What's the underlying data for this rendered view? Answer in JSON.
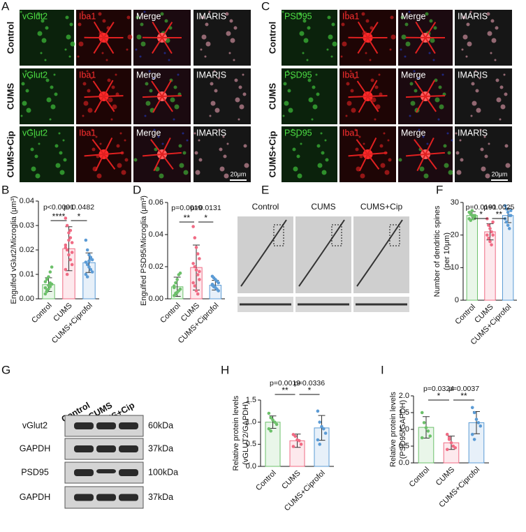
{
  "panel_letters": [
    "A",
    "B",
    "C",
    "D",
    "E",
    "F",
    "G",
    "H",
    "I"
  ],
  "panel_a": {
    "columns": [
      "vGlut2",
      "Iba1",
      "Merge",
      "IMARIS"
    ],
    "rows": [
      "Control",
      "CUMS",
      "CUMS+Cip"
    ],
    "scale_bar": "20μm"
  },
  "panel_c": {
    "columns": [
      "PSD95",
      "Iba1",
      "Merge",
      "IMARIS"
    ],
    "rows": [
      "Control",
      "CUMS",
      "CUMS+Cip"
    ],
    "scale_bar": "20μm"
  },
  "panel_e": {
    "groups": [
      "Control",
      "CUMS",
      "CUMS+Cip"
    ]
  },
  "panel_g": {
    "lanes": [
      "Control",
      "CUMS",
      "CUMS+Cip"
    ],
    "rows": [
      {
        "protein": "vGlut2",
        "size": "60kDa"
      },
      {
        "protein": "GAPDH",
        "size": "37kDa"
      },
      {
        "protein": "PSD95",
        "size": "100kDa"
      },
      {
        "protein": "GAPDH",
        "size": "37kDa"
      }
    ]
  },
  "chart_data": [
    {
      "type": "bar",
      "ylabel": [
        "Engulfed vGlut2/Microglia (μm³)"
      ],
      "categories": [
        "Control",
        "CUMS",
        "CUMS+Ciprofol"
      ],
      "colors": [
        "#6cc06a",
        "#f06b84",
        "#5b9bd5"
      ],
      "values": [
        0.0058,
        0.0205,
        0.0148
      ],
      "errors": [
        0.0028,
        0.009,
        0.004
      ],
      "points": [
        [
          0.002,
          0.003,
          0.004,
          0.005,
          0.006,
          0.007,
          0.008,
          0.009,
          0.011,
          0.013,
          0.0045,
          0.0035,
          0.0055,
          0.0065
        ],
        [
          0.033,
          0.03,
          0.027,
          0.025,
          0.023,
          0.022,
          0.02,
          0.018,
          0.016,
          0.014,
          0.012,
          0.01,
          0.024,
          0.028,
          0.019,
          0.021
        ],
        [
          0.024,
          0.02,
          0.018,
          0.017,
          0.016,
          0.015,
          0.014,
          0.013,
          0.012,
          0.011,
          0.01,
          0.009,
          0.0155,
          0.0165
        ]
      ],
      "ylim": [
        0,
        0.04
      ],
      "yticks": [
        {
          "value": 0,
          "label": "0.00"
        },
        0.01,
        0.02,
        0.03,
        0.04
      ],
      "p_values": [
        "p<0.0001",
        "p=0.0482"
      ],
      "significance": [
        "****",
        "*"
      ]
    },
    {
      "type": "bar",
      "ylabel": [
        "Engulfed PSD95/Microglia (μm³)"
      ],
      "categories": [
        "Control",
        "CUMS",
        "CUMS+Ciprofol"
      ],
      "colors": [
        "#6cc06a",
        "#f06b84",
        "#5b9bd5"
      ],
      "values": [
        0.0075,
        0.0195,
        0.0085
      ],
      "errors": [
        0.006,
        0.014,
        0.003
      ],
      "points": [
        [
          0.002,
          0.003,
          0.004,
          0.005,
          0.006,
          0.008,
          0.01,
          0.012,
          0.015,
          0.016,
          0.007,
          0.0035
        ],
        [
          0.045,
          0.038,
          0.032,
          0.028,
          0.025,
          0.022,
          0.02,
          0.018,
          0.015,
          0.012,
          0.01,
          0.008,
          0.005,
          0.003,
          0.017
        ],
        [
          0.014,
          0.013,
          0.012,
          0.011,
          0.01,
          0.009,
          0.008,
          0.007,
          0.006,
          0.005,
          0.0085,
          0.0075
        ]
      ],
      "ylim": [
        0,
        0.06
      ],
      "yticks": [
        {
          "value": 0,
          "label": "0.00"
        },
        0.02,
        0.04,
        0.06
      ],
      "p_values": [
        "p=0.0019",
        "p=0.0131"
      ],
      "significance": [
        "**",
        "*"
      ]
    },
    {
      "type": "bar",
      "ylabel": [
        "Number of dendritic spines",
        "(per 10μm)"
      ],
      "categories": [
        "Control",
        "CUMS",
        "CUMS+Ciprofol"
      ],
      "colors": [
        "#6cc06a",
        "#f06b84",
        "#5b9bd5"
      ],
      "values": [
        26,
        21,
        26
      ],
      "errors": [
        1.2,
        2.5,
        2.2
      ],
      "points": [
        [
          27,
          26.5,
          26,
          26,
          25.5,
          25,
          24.5,
          27.5,
          25,
          26
        ],
        [
          25,
          23,
          22,
          21,
          20,
          20,
          19,
          18,
          17,
          24
        ],
        [
          29,
          28,
          27,
          26,
          26,
          25,
          24,
          23,
          22,
          27.5
        ]
      ],
      "ylim": [
        0,
        30
      ],
      "yticks": [
        0,
        10,
        20,
        30
      ],
      "p_values": [
        "p=0.0191",
        "p=0.0025"
      ],
      "significance": [
        "*",
        "**"
      ]
    },
    {
      "type": "bar",
      "ylabel": [
        "Relative protein levels",
        "(vGLUT2/GAPDH)"
      ],
      "categories": [
        "Control",
        "CUMS",
        "CUMS+Ciprofol"
      ],
      "colors": [
        "#6cc06a",
        "#f06b84",
        "#5b9bd5"
      ],
      "values": [
        1.0,
        0.58,
        0.87
      ],
      "errors": [
        0.14,
        0.15,
        0.28
      ],
      "points": [
        [
          1.2,
          1.1,
          1.05,
          1.0,
          0.95,
          0.85,
          0.8
        ],
        [
          0.72,
          0.68,
          0.6,
          0.58,
          0.5,
          0.45
        ],
        [
          1.25,
          1.0,
          0.9,
          0.85,
          0.75,
          0.6,
          0.5
        ]
      ],
      "ylim": [
        0,
        1.5
      ],
      "yticks": [
        {
          "value": 0,
          "label": "0.0"
        },
        0.5,
        {
          "value": 1,
          "label": "1.0"
        },
        1.5
      ],
      "p_values": [
        "p=0.0019",
        "p=0.0336"
      ],
      "significance": [
        "**",
        "*"
      ]
    },
    {
      "type": "bar",
      "ylabel": [
        "Relative protein levels",
        "(PSD95/GAPDH)"
      ],
      "categories": [
        "Control",
        "CUMS",
        "CUMS+Ciprofol"
      ],
      "colors": [
        "#6cc06a",
        "#f06b84",
        "#5b9bd5"
      ],
      "values": [
        1.06,
        0.6,
        1.2
      ],
      "errors": [
        0.32,
        0.2,
        0.33
      ],
      "points": [
        [
          1.5,
          1.2,
          1.05,
          0.95,
          0.8,
          0.75
        ],
        [
          0.85,
          0.7,
          0.6,
          0.5,
          0.45,
          0.4,
          0.75
        ],
        [
          1.65,
          1.5,
          1.3,
          1.2,
          1.1,
          0.85,
          0.7
        ]
      ],
      "ylim": [
        0,
        2.0
      ],
      "yticks": [
        {
          "value": 0,
          "label": "0.0"
        },
        0.5,
        {
          "value": 1,
          "label": "1.0"
        },
        1.5,
        {
          "value": 2,
          "label": "2.0"
        }
      ],
      "p_values": [
        "p=0.0324",
        "p=0.0037"
      ],
      "significance": [
        "*",
        "**"
      ]
    }
  ]
}
